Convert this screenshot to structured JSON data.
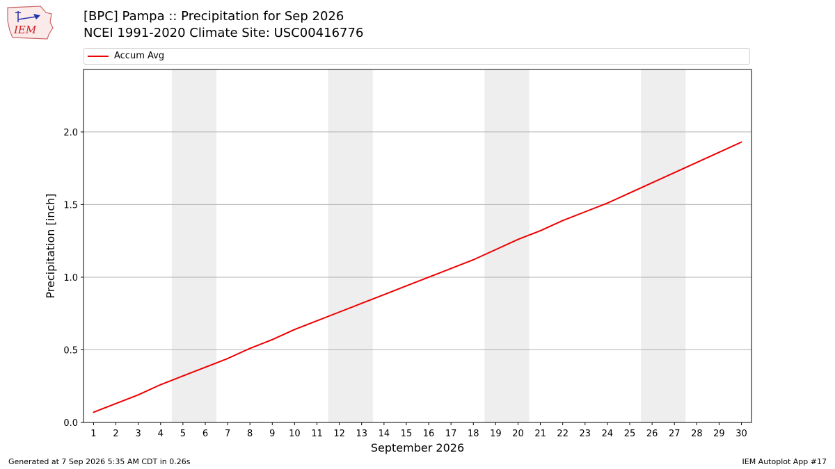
{
  "header": {
    "title_line1": "[BPC] Pampa :: Precipitation for Sep 2026",
    "title_line2": "NCEI 1991-2020 Climate Site: USC00416776"
  },
  "logo": {
    "text": "IEM",
    "icon": "iem-iowa-logo"
  },
  "footer": {
    "left": "Generated at 7 Sep 2026 5:35 AM CDT in 0.26s",
    "right": "IEM Autoplot App #17"
  },
  "colors": {
    "series": "#ee0000",
    "weekend_band": "#eeeeee",
    "grid": "#b0b0b0"
  },
  "chart_data": {
    "type": "line",
    "xlabel": "September 2026",
    "ylabel": "Precipitation [inch]",
    "x": [
      1,
      2,
      3,
      4,
      5,
      6,
      7,
      8,
      9,
      10,
      11,
      12,
      13,
      14,
      15,
      16,
      17,
      18,
      19,
      20,
      21,
      22,
      23,
      24,
      25,
      26,
      27,
      28,
      29,
      30
    ],
    "series": [
      {
        "name": "Accum Avg",
        "values": [
          0.07,
          0.13,
          0.19,
          0.26,
          0.32,
          0.38,
          0.44,
          0.51,
          0.57,
          0.64,
          0.7,
          0.76,
          0.82,
          0.88,
          0.94,
          1.0,
          1.06,
          1.12,
          1.19,
          1.26,
          1.32,
          1.39,
          1.45,
          1.51,
          1.58,
          1.65,
          1.72,
          1.79,
          1.86,
          1.93
        ]
      }
    ],
    "shaded_days": [
      [
        5,
        6
      ],
      [
        12,
        13
      ],
      [
        19,
        20
      ],
      [
        26,
        27
      ]
    ],
    "xlim": [
      0.55,
      30.45
    ],
    "ylim": [
      0,
      2.43
    ],
    "yticks": [
      0.0,
      0.5,
      1.0,
      1.5,
      2.0
    ],
    "ytick_labels": [
      "0.0",
      "0.5",
      "1.0",
      "1.5",
      "2.0"
    ],
    "xticks": [
      1,
      2,
      3,
      4,
      5,
      6,
      7,
      8,
      9,
      10,
      11,
      12,
      13,
      14,
      15,
      16,
      17,
      18,
      19,
      20,
      21,
      22,
      23,
      24,
      25,
      26,
      27,
      28,
      29,
      30
    ],
    "grid": "y",
    "legend_position": "top"
  }
}
